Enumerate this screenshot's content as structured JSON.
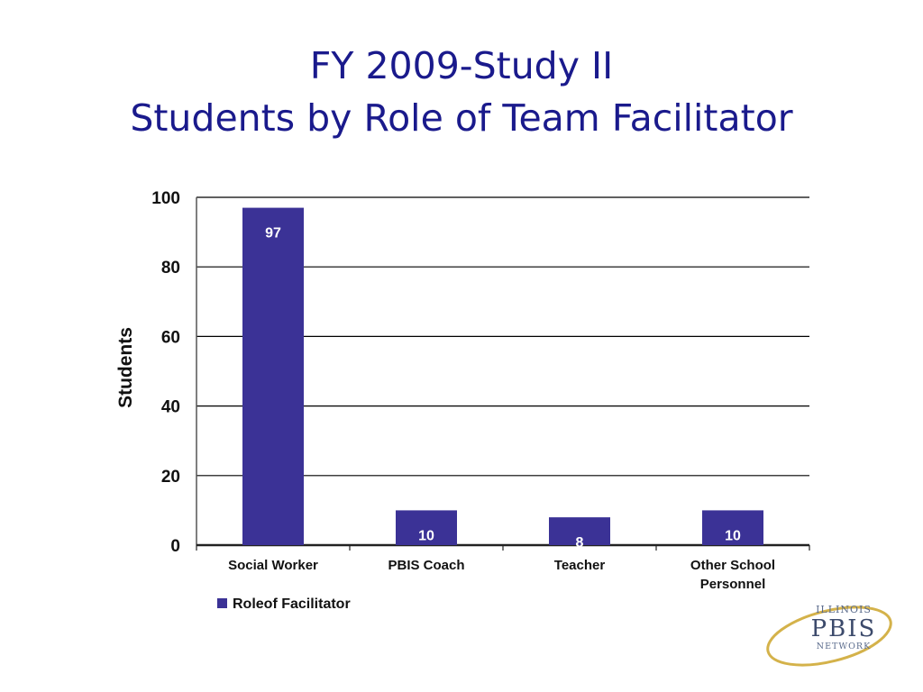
{
  "slide": {
    "title_line1": "FY 2009-Study II",
    "title_line2": "Students by Role of Team Facilitator"
  },
  "colors": {
    "title": "#1a1a8c",
    "bar": "#3b3296",
    "bar_label": "#ffffff",
    "axis_text": "#111111",
    "gridline": "#000000",
    "logo_ring": "#d4b24a",
    "logo_text": "#5a6b8c"
  },
  "logo": {
    "line1": "ILLINOIS",
    "line2": "PBIS",
    "line3": "NETWORK"
  },
  "chart_data": {
    "type": "bar",
    "categories": [
      "Social Worker",
      "PBIS Coach",
      "Teacher",
      "Other School Personnel"
    ],
    "category_lines": [
      [
        "Social Worker"
      ],
      [
        "PBIS Coach"
      ],
      [
        "Teacher"
      ],
      [
        "Other School",
        "Personnel"
      ]
    ],
    "series": [
      {
        "name": "Roleof Facilitator",
        "values": [
          97,
          10,
          8,
          10
        ],
        "color": "#3b3296"
      }
    ],
    "title": "",
    "xlabel": "",
    "ylabel": "Students",
    "ylim": [
      0,
      100
    ],
    "yticks": [
      0,
      20,
      40,
      60,
      80,
      100
    ],
    "grid": true,
    "legend_position": "bottom-left",
    "data_labels": true
  }
}
